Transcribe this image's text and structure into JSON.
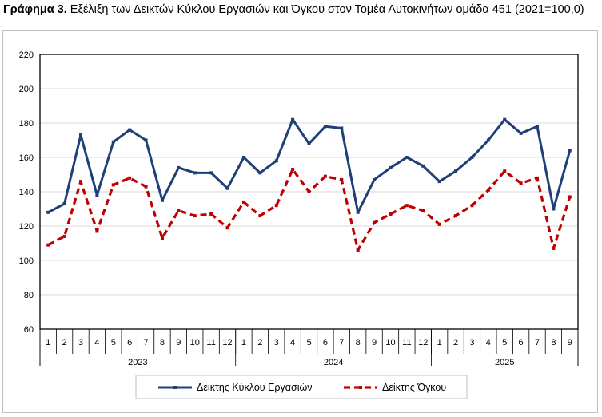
{
  "title": {
    "lead": "Γράφημα 3.",
    "text": "Εξέλιξη των Δεικτών Κύκλου Εργασιών και Όγκου στον Τομέα Αυτοκινήτων ομάδα 451 (2021=100,0)"
  },
  "colors": {
    "series1": "#1f3f77",
    "series2": "#c00000",
    "axis": "#000000",
    "grid": "#d9d9d9"
  },
  "chart_data": {
    "type": "line",
    "title": "Εξέλιξη των Δεικτών Κύκλου Εργασιών και Όγκου στον Τομέα Αυτοκινήτων ομάδα 451 (2021=100,0)",
    "x": [
      "1",
      "2",
      "3",
      "4",
      "5",
      "6",
      "7",
      "8",
      "9",
      "10",
      "11",
      "12",
      "1",
      "2",
      "3",
      "4",
      "5",
      "6",
      "7",
      "8",
      "9",
      "10",
      "11",
      "12",
      "1",
      "2",
      "3",
      "4",
      "5",
      "6",
      "7",
      "8",
      "9"
    ],
    "years": [
      {
        "label": "2023",
        "count": 12
      },
      {
        "label": "2024",
        "count": 12
      },
      {
        "label": "2025",
        "count": 9
      }
    ],
    "ylim": [
      60,
      220
    ],
    "yticks": [
      "60",
      "80",
      "100",
      "120",
      "140",
      "160",
      "180",
      "200",
      "220"
    ],
    "grid": true,
    "legend": "bottom",
    "series": [
      {
        "name": "Δείκτης Κύκλου Εργασιών",
        "style": "solid",
        "values": [
          128,
          133,
          173,
          138,
          169,
          176,
          170,
          135,
          154,
          151,
          151,
          142,
          160,
          151,
          158,
          182,
          168,
          178,
          177,
          128,
          147,
          154,
          160,
          155,
          146,
          152,
          160,
          170,
          182,
          174,
          178,
          130,
          164
        ]
      },
      {
        "name": "Δείκτης Όγκου",
        "style": "dashed",
        "values": [
          109,
          114,
          146,
          117,
          144,
          148,
          143,
          113,
          129,
          126,
          127,
          119,
          134,
          126,
          132,
          153,
          140,
          149,
          147,
          106,
          122,
          127,
          132,
          129,
          121,
          126,
          132,
          141,
          152,
          145,
          148,
          107,
          137
        ]
      }
    ]
  }
}
